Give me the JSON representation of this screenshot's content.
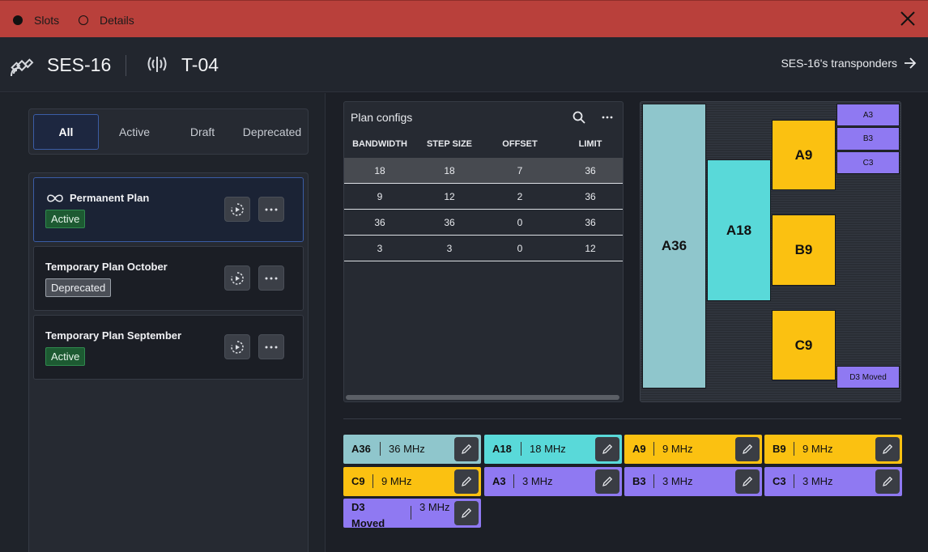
{
  "topbar": {
    "tabs": [
      {
        "label": "Slots",
        "selected": true
      },
      {
        "label": "Details",
        "selected": false
      }
    ]
  },
  "header": {
    "satellite": "SES-16",
    "transponder": "T-04",
    "link_label": "SES-16's transponders"
  },
  "filters": [
    "All",
    "Active",
    "Draft",
    "Deprecated"
  ],
  "plans": [
    {
      "name": "Permanent Plan",
      "status": "Active",
      "permanent": true
    },
    {
      "name": "Temporary Plan October",
      "status": "Deprecated",
      "permanent": false
    },
    {
      "name": "Temporary Plan September",
      "status": "Active",
      "permanent": false
    }
  ],
  "configs": {
    "title": "Plan configs",
    "headers": [
      "BANDWIDTH",
      "STEP SIZE",
      "OFFSET",
      "LIMIT"
    ],
    "rows": [
      [
        "18",
        "18",
        "7",
        "36"
      ],
      [
        "9",
        "12",
        "2",
        "36"
      ],
      [
        "36",
        "36",
        "0",
        "36"
      ],
      [
        "3",
        "3",
        "0",
        "12"
      ]
    ]
  },
  "slots_visual": {
    "labels": [
      "A36",
      "A18",
      "A9",
      "B9",
      "C9",
      "A3",
      "B3",
      "C3",
      "D3 Moved"
    ]
  },
  "chips": [
    {
      "name": "A36",
      "bw": "36 MHz"
    },
    {
      "name": "A18",
      "bw": "18 MHz"
    },
    {
      "name": "A9",
      "bw": "9 MHz"
    },
    {
      "name": "B9",
      "bw": "9 MHz"
    },
    {
      "name": "C9",
      "bw": "9 MHz"
    },
    {
      "name": "A3",
      "bw": "3 MHz"
    },
    {
      "name": "B3",
      "bw": "3 MHz"
    },
    {
      "name": "C3",
      "bw": "3 MHz"
    },
    {
      "name": "D3 Moved",
      "bw": "3 MHz"
    }
  ],
  "colors": {
    "topbar": "#b9403b",
    "accent": "#3a5ca5",
    "slot_36": "#8fc6cc",
    "slot_18": "#59d9d9",
    "slot_9": "#fbc111",
    "slot_3": "#8f79f2",
    "active_badge": "#1d5a32"
  }
}
